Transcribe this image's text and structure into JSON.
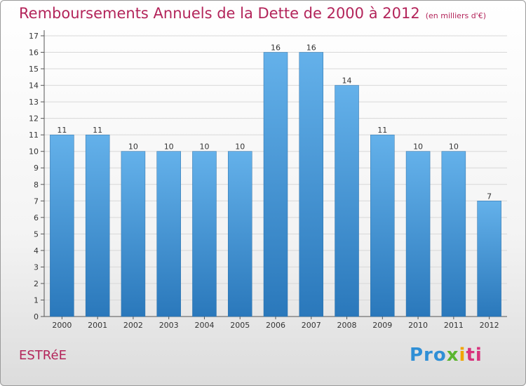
{
  "title": "Remboursements Annuels de la Dette de 2000 à 2012",
  "subtitle": "(en milliers d'€)",
  "commune": "ESTRéE",
  "logo": {
    "p1": "Pro",
    "p2": "x",
    "p3": "i",
    "p4": "ti"
  },
  "colors": {
    "title": "#b3245a",
    "bar_top": "#64b1ea",
    "bar_bottom": "#2a78bb",
    "grid": "#d8d8d8"
  },
  "chart_data": {
    "type": "bar",
    "categories": [
      "2000",
      "2001",
      "2002",
      "2003",
      "2004",
      "2005",
      "2006",
      "2007",
      "2008",
      "2009",
      "2010",
      "2011",
      "2012"
    ],
    "values": [
      11,
      11,
      10,
      10,
      10,
      10,
      16,
      16,
      14,
      11,
      10,
      10,
      7
    ],
    "data_labels": [
      "11",
      "11",
      "10",
      "10",
      "10",
      "10",
      "16",
      "16",
      "14",
      "11",
      "10",
      "10",
      "7"
    ],
    "title": "Remboursements Annuels de la Dette de 2000 à 2012",
    "subtitle": "(en milliers d'€)",
    "xlabel": "",
    "ylabel": "",
    "ylim": [
      0,
      17
    ],
    "yticks": [
      0,
      1,
      2,
      3,
      4,
      5,
      6,
      7,
      8,
      9,
      10,
      11,
      12,
      13,
      14,
      15,
      16,
      17
    ],
    "grid": true,
    "legend": "none"
  }
}
